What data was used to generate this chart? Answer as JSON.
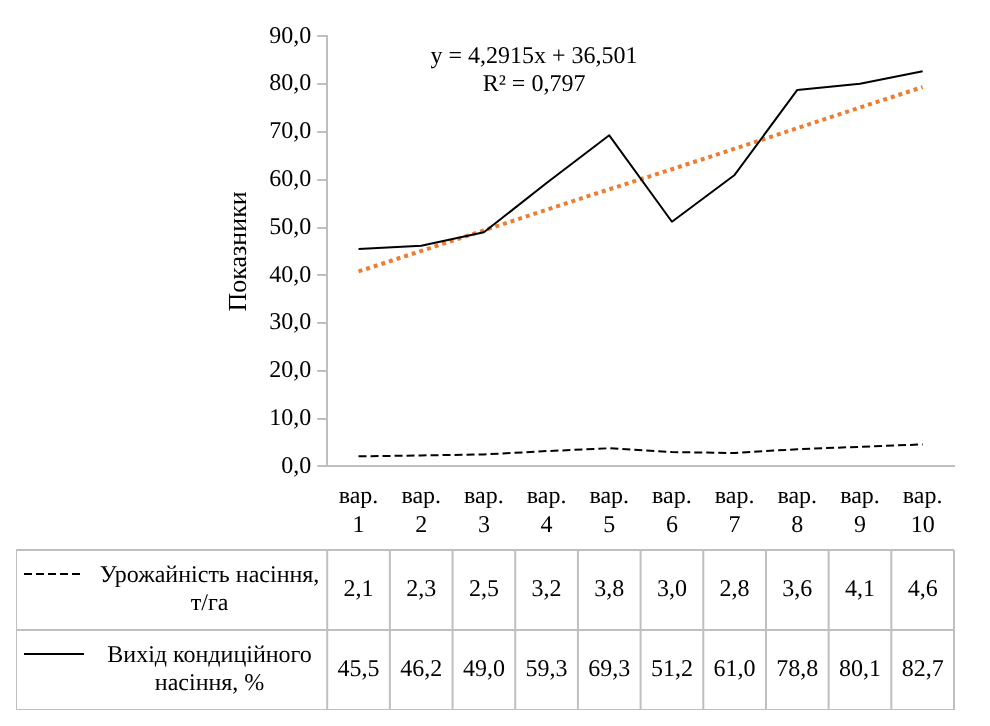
{
  "chart_data": {
    "type": "line",
    "ylabel": "Показники",
    "categories": [
      "вар. 1",
      "вар. 2",
      "вар. 3",
      "вар. 4",
      "вар. 5",
      "вар. 6",
      "вар. 7",
      "вар. 8",
      "вар. 9",
      "вар. 10"
    ],
    "series": [
      {
        "name": "Урожайність насіння, т/га",
        "color": "#000000",
        "line_style": "dashed",
        "values": [
          2.1,
          2.3,
          2.5,
          3.2,
          3.8,
          3.0,
          2.8,
          3.6,
          4.1,
          4.6
        ],
        "value_labels": [
          "2,1",
          "2,3",
          "2,5",
          "3,2",
          "3,8",
          "3,0",
          "2,8",
          "3,6",
          "4,1",
          "4,6"
        ]
      },
      {
        "name": "Вихід кондиційного насіння, %",
        "color": "#000000",
        "line_style": "solid",
        "values": [
          45.5,
          46.2,
          49.0,
          59.3,
          69.3,
          51.2,
          61.0,
          78.8,
          80.1,
          82.7
        ],
        "value_labels": [
          "45,5",
          "46,2",
          "49,0",
          "59,3",
          "69,3",
          "51,2",
          "61,0",
          "78,8",
          "80,1",
          "82,7"
        ]
      },
      {
        "type": "line",
        "color": "#ed7d31",
        "line_style": "dotted",
        "values": [
          40.8,
          45.1,
          49.4,
          53.7,
          58.0,
          62.2,
          66.5,
          70.8,
          75.1,
          79.4
        ]
      }
    ],
    "ylim": [
      0,
      90
    ],
    "yticks": [
      {
        "value": 0,
        "label": "0,0"
      },
      {
        "value": 10,
        "label": "10,0"
      },
      {
        "value": 20,
        "label": "20,0"
      },
      {
        "value": 30,
        "label": "30,0"
      },
      {
        "value": 40,
        "label": "40,0"
      },
      {
        "value": 50,
        "label": "50,0"
      },
      {
        "value": 60,
        "label": "60,0"
      },
      {
        "value": 70,
        "label": "70,0"
      },
      {
        "value": 80,
        "label": "80,0"
      },
      {
        "value": 90,
        "label": "90,0"
      }
    ],
    "grid": false,
    "marker": "none",
    "legend": "bottom",
    "annotations": [
      "y = 4,2915x + 36,501",
      "R² = 0,797"
    ]
  }
}
